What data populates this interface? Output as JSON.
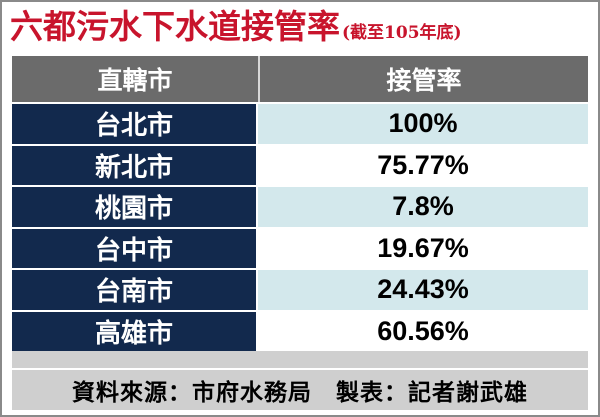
{
  "title": {
    "main": "六都污水下水道接管率",
    "sub": "(截至105年底)"
  },
  "table": {
    "headers": [
      "直轄市",
      "接管率"
    ],
    "rows": [
      {
        "city": "台北市",
        "rate": "100%"
      },
      {
        "city": "新北市",
        "rate": "75.77%"
      },
      {
        "city": "桃園市",
        "rate": "7.8%"
      },
      {
        "city": "台中市",
        "rate": "19.67%"
      },
      {
        "city": "台南市",
        "rate": "24.43%"
      },
      {
        "city": "高雄市",
        "rate": "60.56%"
      }
    ]
  },
  "footer": "資料來源：市府水務局　製表：記者謝武雄",
  "colors": {
    "title": "#c8142c",
    "header_bg": "#6b6b6b",
    "city_bg": "#12294d",
    "rate_light_bg": "#d3e8ec",
    "footer_bg": "#cfcfcf"
  }
}
